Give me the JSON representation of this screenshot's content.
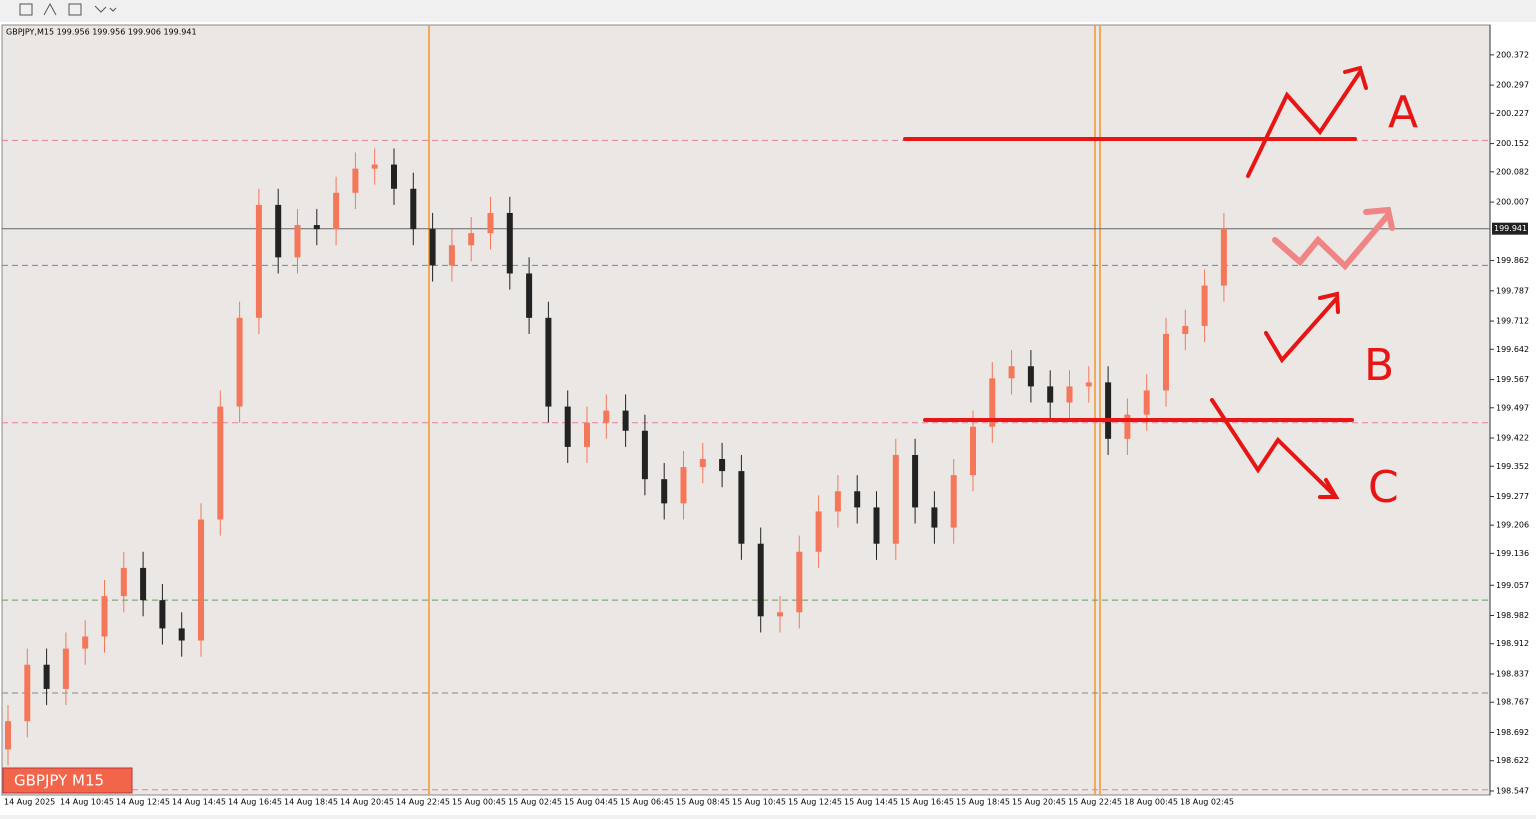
{
  "chart_data": {
    "type": "candlestick",
    "title": "GBPJPY,M15 199.956 199.956 199.906 199.941",
    "badge": "GBPJPY M15",
    "current_price": {
      "value": 199.941,
      "label": "199.941"
    },
    "open": [
      198.65,
      198.72,
      198.86,
      198.8,
      198.9,
      198.93,
      199.03,
      199.1,
      199.02,
      198.95,
      198.92,
      199.22,
      199.5,
      199.72,
      200.0,
      199.87,
      199.95,
      199.94,
      200.03,
      200.09,
      200.1,
      200.04,
      199.94,
      199.85,
      199.9,
      199.93,
      199.98,
      199.83,
      199.72,
      199.5,
      199.4,
      199.46,
      199.49,
      199.44,
      199.32,
      199.26,
      199.35,
      199.37,
      199.34,
      199.16,
      198.98,
      198.99,
      199.14,
      199.24,
      199.29,
      199.25,
      199.16,
      199.38,
      199.25,
      199.2,
      199.33,
      199.45,
      199.57,
      199.6,
      199.55,
      199.51,
      199.55,
      199.56,
      199.42,
      199.48,
      199.54,
      199.68,
      199.7,
      199.8
    ],
    "high": [
      198.76,
      198.9,
      198.9,
      198.94,
      198.97,
      199.07,
      199.14,
      199.14,
      199.06,
      198.99,
      199.26,
      199.54,
      199.76,
      200.04,
      200.04,
      199.99,
      199.99,
      200.07,
      200.13,
      200.14,
      200.14,
      200.08,
      199.98,
      199.94,
      199.97,
      200.02,
      200.02,
      199.87,
      199.76,
      199.54,
      199.5,
      199.53,
      199.53,
      199.48,
      199.36,
      199.39,
      199.41,
      199.41,
      199.38,
      199.2,
      199.03,
      199.18,
      199.28,
      199.33,
      199.33,
      199.29,
      199.42,
      199.42,
      199.29,
      199.37,
      199.49,
      199.61,
      199.64,
      199.64,
      199.59,
      199.59,
      199.6,
      199.6,
      199.52,
      199.58,
      199.72,
      199.74,
      199.84,
      199.98
    ],
    "low": [
      198.61,
      198.68,
      198.76,
      198.76,
      198.86,
      198.89,
      198.99,
      198.98,
      198.91,
      198.88,
      198.88,
      199.18,
      199.46,
      199.68,
      199.83,
      199.83,
      199.9,
      199.9,
      199.99,
      200.05,
      200.0,
      199.9,
      199.81,
      199.81,
      199.86,
      199.89,
      199.79,
      199.68,
      199.46,
      199.36,
      199.36,
      199.42,
      199.4,
      199.28,
      199.22,
      199.22,
      199.31,
      199.3,
      199.12,
      198.94,
      198.94,
      198.95,
      199.1,
      199.2,
      199.21,
      199.12,
      199.12,
      199.21,
      199.16,
      199.16,
      199.29,
      199.41,
      199.53,
      199.51,
      199.47,
      199.47,
      199.51,
      199.38,
      199.38,
      199.44,
      199.5,
      199.64,
      199.66,
      199.76
    ],
    "close": [
      198.72,
      198.86,
      198.8,
      198.9,
      198.93,
      199.03,
      199.1,
      199.02,
      198.95,
      198.92,
      199.22,
      199.5,
      199.72,
      200.0,
      199.87,
      199.95,
      199.94,
      200.03,
      200.09,
      200.1,
      200.04,
      199.94,
      199.85,
      199.9,
      199.93,
      199.98,
      199.83,
      199.72,
      199.5,
      199.4,
      199.46,
      199.49,
      199.44,
      199.32,
      199.26,
      199.35,
      199.37,
      199.34,
      199.16,
      198.98,
      198.99,
      199.14,
      199.24,
      199.29,
      199.25,
      199.16,
      199.38,
      199.25,
      199.2,
      199.33,
      199.45,
      199.57,
      199.6,
      199.55,
      199.51,
      199.55,
      199.56,
      199.42,
      199.48,
      199.54,
      199.68,
      199.7,
      199.8,
      199.941
    ],
    "up_color": "#f4775a",
    "down_color": "#222222",
    "xlabels": [
      "14 Aug 2025",
      "14 Aug 10:45",
      "14 Aug 12:45",
      "14 Aug 14:45",
      "14 Aug 16:45",
      "14 Aug 18:45",
      "14 Aug 20:45",
      "14 Aug 22:45",
      "15 Aug 00:45",
      "15 Aug 02:45",
      "15 Aug 04:45",
      "15 Aug 06:45",
      "15 Aug 08:45",
      "15 Aug 10:45",
      "15 Aug 12:45",
      "15 Aug 14:45",
      "15 Aug 16:45",
      "15 Aug 18:45",
      "15 Aug 20:45",
      "15 Aug 22:45",
      "18 Aug 00:45",
      "18 Aug 02:45"
    ],
    "ylim": [
      198.537,
      200.446
    ],
    "yticks": [
      200.372,
      200.297,
      200.227,
      200.152,
      200.082,
      200.007,
      199.862,
      199.787,
      199.712,
      199.642,
      199.567,
      199.497,
      199.422,
      199.352,
      199.277,
      199.206,
      199.136,
      199.057,
      198.982,
      198.912,
      198.837,
      198.767,
      198.692,
      198.622,
      198.547
    ],
    "levels": [
      {
        "value": 200.16,
        "color": "#e87fa0"
      },
      {
        "value": 199.85,
        "color": "#6f84b8"
      },
      {
        "value": 199.46,
        "color": "#e87fa0"
      },
      {
        "value": 199.02,
        "color": "#5ca36a"
      },
      {
        "value": 198.79,
        "color": "#8a8a8a"
      },
      {
        "value": 198.55,
        "color": "#e87fa0"
      }
    ],
    "annotations": [
      "A",
      "B",
      "C"
    ]
  }
}
